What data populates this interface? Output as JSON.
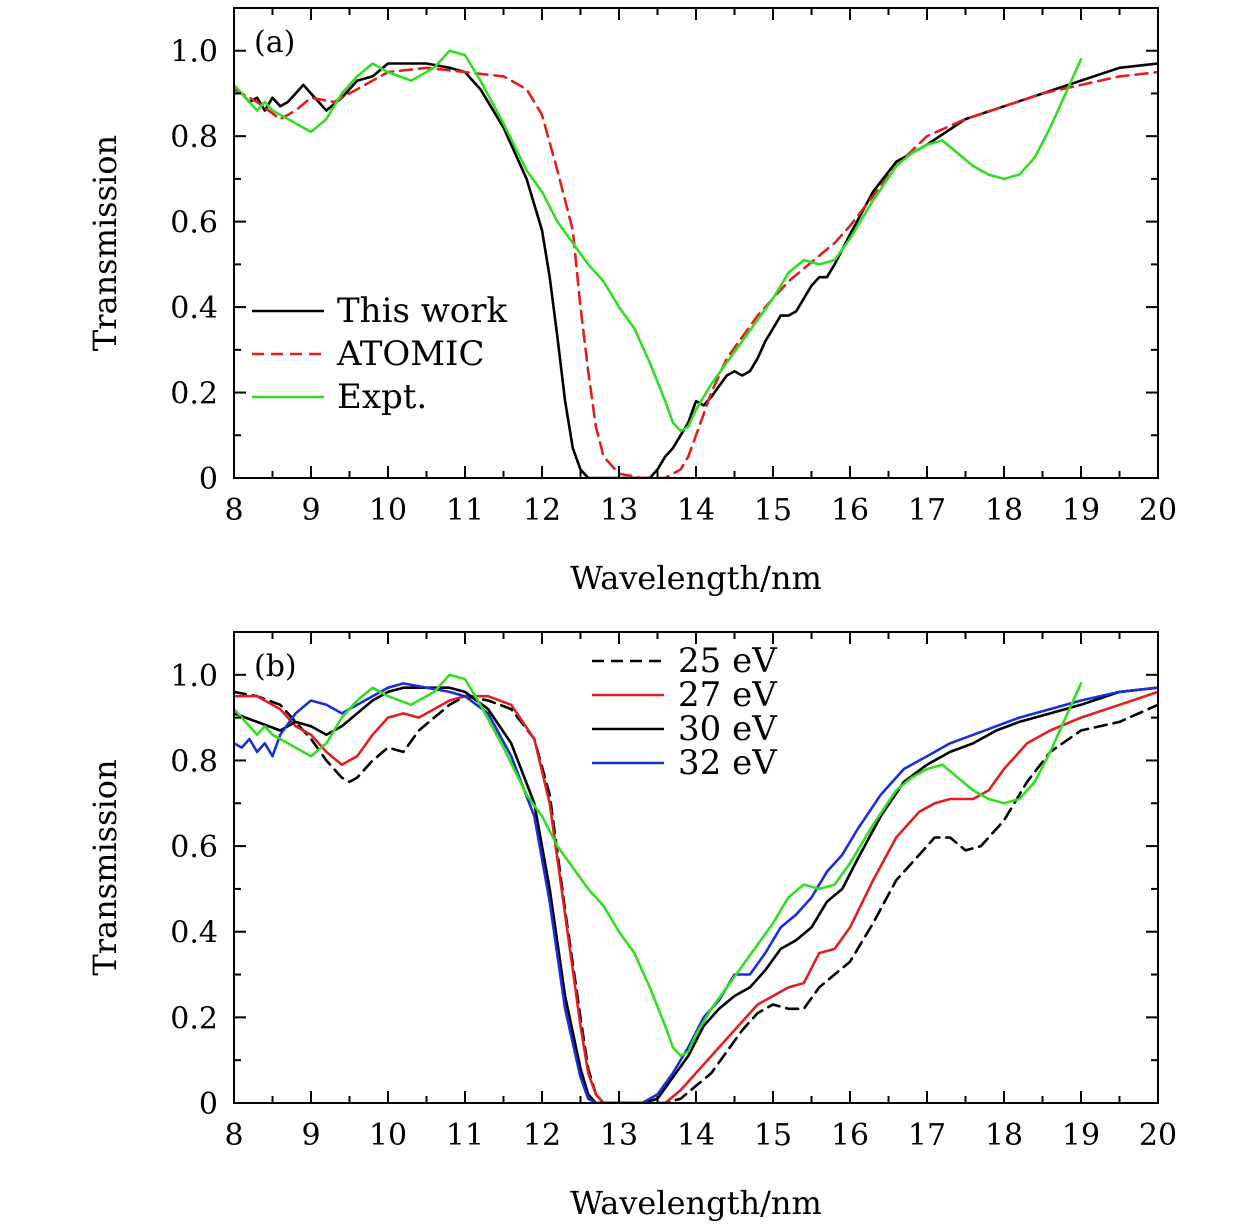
{
  "chart_data": [
    {
      "type": "line",
      "panel_label": "(a)",
      "xlabel": "Wavelength/nm",
      "ylabel": "Transmission",
      "xlim": [
        8,
        20
      ],
      "ylim": [
        0,
        1.1
      ],
      "xticks": [
        "8",
        "9",
        "10",
        "11",
        "12",
        "13",
        "14",
        "15",
        "16",
        "17",
        "18",
        "19",
        "20"
      ],
      "yticks": [
        "0",
        "0.2",
        "0.4",
        "0.6",
        "0.8",
        "1.0"
      ],
      "grid": false,
      "legend_position": "left-middle",
      "series": [
        {
          "name": "This work",
          "color": "#000000",
          "dash": "solid",
          "x": [
            8,
            8.1,
            8.2,
            8.3,
            8.4,
            8.5,
            8.6,
            8.7,
            8.8,
            8.9,
            9.0,
            9.2,
            9.4,
            9.6,
            9.8,
            10.0,
            10.2,
            10.5,
            10.8,
            11.0,
            11.2,
            11.5,
            11.8,
            12.0,
            12.1,
            12.2,
            12.3,
            12.4,
            12.5,
            12.6,
            12.7,
            13.0,
            13.3,
            13.4,
            13.5,
            13.6,
            13.7,
            13.8,
            13.9,
            14.0,
            14.1,
            14.2,
            14.4,
            14.5,
            14.6,
            14.7,
            14.8,
            14.9,
            15.0,
            15.1,
            15.2,
            15.3,
            15.4,
            15.5,
            15.6,
            15.7,
            15.8,
            16.0,
            16.3,
            16.6,
            17.0,
            17.5,
            18.0,
            18.5,
            19.0,
            19.5,
            20.0
          ],
          "y": [
            0.91,
            0.9,
            0.88,
            0.89,
            0.86,
            0.89,
            0.87,
            0.88,
            0.9,
            0.92,
            0.9,
            0.86,
            0.89,
            0.93,
            0.94,
            0.97,
            0.97,
            0.97,
            0.96,
            0.95,
            0.91,
            0.82,
            0.7,
            0.58,
            0.47,
            0.33,
            0.18,
            0.07,
            0.02,
            0.0,
            0.0,
            0.0,
            0.0,
            0.0,
            0.02,
            0.05,
            0.07,
            0.1,
            0.13,
            0.18,
            0.17,
            0.19,
            0.24,
            0.25,
            0.24,
            0.25,
            0.28,
            0.32,
            0.35,
            0.38,
            0.38,
            0.39,
            0.42,
            0.45,
            0.47,
            0.47,
            0.5,
            0.57,
            0.67,
            0.74,
            0.78,
            0.84,
            0.87,
            0.9,
            0.93,
            0.96,
            0.97
          ]
        },
        {
          "name": "ATOMIC",
          "color": "#e02020",
          "dash": "dashed",
          "x": [
            8,
            8.3,
            8.6,
            8.8,
            9.0,
            9.3,
            9.6,
            10.0,
            10.5,
            11.0,
            11.5,
            11.8,
            12.0,
            12.2,
            12.4,
            12.5,
            12.6,
            12.7,
            12.8,
            13.0,
            13.3,
            13.6,
            13.8,
            13.9,
            14.0,
            14.1,
            14.2,
            14.4,
            14.6,
            14.8,
            15.0,
            15.2,
            15.4,
            15.6,
            15.8,
            16.0,
            16.3,
            16.6,
            17.0,
            17.5,
            18.0,
            18.5,
            19.0,
            19.5,
            20.0
          ],
          "y": [
            0.91,
            0.88,
            0.84,
            0.86,
            0.89,
            0.88,
            0.91,
            0.95,
            0.96,
            0.95,
            0.94,
            0.91,
            0.85,
            0.72,
            0.58,
            0.4,
            0.25,
            0.12,
            0.05,
            0.01,
            0.0,
            0.0,
            0.02,
            0.05,
            0.1,
            0.15,
            0.2,
            0.28,
            0.33,
            0.38,
            0.42,
            0.46,
            0.49,
            0.52,
            0.55,
            0.59,
            0.66,
            0.73,
            0.8,
            0.84,
            0.87,
            0.9,
            0.92,
            0.94,
            0.95
          ]
        },
        {
          "name": "Expt.",
          "color": "#33dd22",
          "dash": "solid",
          "x": [
            8,
            8.2,
            8.3,
            8.4,
            8.5,
            8.6,
            8.8,
            9.0,
            9.2,
            9.4,
            9.6,
            9.8,
            10.0,
            10.3,
            10.6,
            10.8,
            11.0,
            11.2,
            11.5,
            11.8,
            12.0,
            12.2,
            12.4,
            12.6,
            12.8,
            13.0,
            13.2,
            13.4,
            13.6,
            13.7,
            13.8,
            13.9,
            14.0,
            14.2,
            14.4,
            14.6,
            14.8,
            15.0,
            15.2,
            15.4,
            15.6,
            15.8,
            16.0,
            16.3,
            16.6,
            16.8,
            17.0,
            17.2,
            17.4,
            17.6,
            17.8,
            18.0,
            18.2,
            18.4,
            18.6,
            18.8,
            19.0
          ],
          "y": [
            0.92,
            0.88,
            0.86,
            0.88,
            0.86,
            0.85,
            0.83,
            0.81,
            0.84,
            0.9,
            0.94,
            0.97,
            0.95,
            0.93,
            0.96,
            1.0,
            0.99,
            0.93,
            0.83,
            0.72,
            0.67,
            0.6,
            0.55,
            0.5,
            0.46,
            0.4,
            0.35,
            0.27,
            0.18,
            0.13,
            0.11,
            0.12,
            0.16,
            0.22,
            0.27,
            0.32,
            0.37,
            0.42,
            0.48,
            0.51,
            0.5,
            0.51,
            0.56,
            0.65,
            0.73,
            0.76,
            0.78,
            0.79,
            0.76,
            0.73,
            0.71,
            0.7,
            0.71,
            0.75,
            0.82,
            0.9,
            0.98
          ]
        }
      ]
    },
    {
      "type": "line",
      "panel_label": "(b)",
      "xlabel": "Wavelength/nm",
      "ylabel": "Transmission",
      "xlim": [
        8,
        20
      ],
      "ylim": [
        0,
        1.1
      ],
      "xticks": [
        "8",
        "9",
        "10",
        "11",
        "12",
        "13",
        "14",
        "15",
        "16",
        "17",
        "18",
        "19",
        "20"
      ],
      "yticks": [
        "0",
        "0.2",
        "0.4",
        "0.6",
        "0.8",
        "1.0"
      ],
      "grid": false,
      "legend_position": "top-middle",
      "series": [
        {
          "name": "25 eV",
          "color": "#000000",
          "dash": "dashed",
          "x": [
            8,
            8.3,
            8.6,
            8.8,
            9.0,
            9.2,
            9.4,
            9.5,
            9.6,
            9.8,
            10.0,
            10.2,
            10.4,
            10.6,
            10.8,
            11.0,
            11.3,
            11.6,
            11.9,
            12.1,
            12.3,
            12.5,
            12.6,
            12.7,
            12.8,
            13.0,
            13.3,
            13.6,
            13.8,
            14.0,
            14.2,
            14.4,
            14.6,
            14.8,
            15.0,
            15.2,
            15.4,
            15.6,
            15.8,
            16.0,
            16.3,
            16.6,
            16.9,
            17.1,
            17.3,
            17.5,
            17.7,
            18.0,
            18.3,
            18.6,
            19.0,
            19.5,
            20.0
          ],
          "y": [
            0.96,
            0.95,
            0.93,
            0.89,
            0.85,
            0.8,
            0.76,
            0.75,
            0.76,
            0.8,
            0.83,
            0.82,
            0.87,
            0.9,
            0.93,
            0.95,
            0.94,
            0.92,
            0.85,
            0.72,
            0.45,
            0.2,
            0.08,
            0.02,
            0.0,
            0.0,
            0.0,
            0.0,
            0.01,
            0.04,
            0.07,
            0.12,
            0.17,
            0.21,
            0.23,
            0.22,
            0.22,
            0.27,
            0.3,
            0.33,
            0.42,
            0.52,
            0.58,
            0.62,
            0.62,
            0.59,
            0.6,
            0.66,
            0.75,
            0.82,
            0.87,
            0.89,
            0.93
          ]
        },
        {
          "name": "27 eV",
          "color": "#e02020",
          "dash": "solid",
          "x": [
            8,
            8.3,
            8.6,
            8.8,
            9.0,
            9.2,
            9.4,
            9.6,
            9.8,
            10.0,
            10.2,
            10.4,
            10.6,
            10.8,
            11.0,
            11.3,
            11.6,
            11.9,
            12.1,
            12.3,
            12.5,
            12.6,
            12.7,
            12.8,
            13.0,
            13.3,
            13.6,
            13.8,
            14.0,
            14.2,
            14.4,
            14.6,
            14.8,
            15.0,
            15.2,
            15.4,
            15.6,
            15.8,
            16.0,
            16.3,
            16.6,
            16.9,
            17.1,
            17.3,
            17.6,
            17.8,
            18.0,
            18.3,
            18.6,
            19.0,
            19.5,
            20.0
          ],
          "y": [
            0.95,
            0.95,
            0.92,
            0.88,
            0.86,
            0.82,
            0.79,
            0.81,
            0.86,
            0.9,
            0.91,
            0.9,
            0.92,
            0.94,
            0.95,
            0.95,
            0.93,
            0.85,
            0.7,
            0.44,
            0.18,
            0.07,
            0.02,
            0.0,
            0.0,
            0.0,
            0.0,
            0.03,
            0.07,
            0.11,
            0.15,
            0.19,
            0.23,
            0.25,
            0.27,
            0.28,
            0.35,
            0.36,
            0.41,
            0.52,
            0.62,
            0.68,
            0.7,
            0.71,
            0.71,
            0.73,
            0.78,
            0.84,
            0.87,
            0.9,
            0.93,
            0.96
          ]
        },
        {
          "name": "30 eV",
          "color": "#000000",
          "dash": "solid",
          "x": [
            8,
            8.3,
            8.6,
            8.8,
            9.0,
            9.2,
            9.4,
            9.6,
            9.8,
            10.0,
            10.2,
            10.5,
            10.8,
            11.0,
            11.3,
            11.6,
            11.9,
            12.1,
            12.3,
            12.5,
            12.6,
            12.7,
            12.8,
            13.0,
            13.3,
            13.5,
            13.7,
            13.9,
            14.1,
            14.3,
            14.5,
            14.7,
            14.9,
            15.1,
            15.3,
            15.5,
            15.7,
            15.9,
            16.1,
            16.4,
            16.7,
            17.0,
            17.3,
            17.6,
            17.9,
            18.2,
            18.6,
            19.0,
            19.5,
            20.0
          ],
          "y": [
            0.91,
            0.89,
            0.87,
            0.89,
            0.88,
            0.86,
            0.88,
            0.91,
            0.94,
            0.96,
            0.97,
            0.97,
            0.97,
            0.96,
            0.92,
            0.84,
            0.7,
            0.5,
            0.25,
            0.08,
            0.02,
            0.0,
            0.0,
            0.0,
            0.0,
            0.01,
            0.06,
            0.11,
            0.18,
            0.22,
            0.25,
            0.27,
            0.31,
            0.36,
            0.38,
            0.41,
            0.47,
            0.5,
            0.57,
            0.67,
            0.75,
            0.79,
            0.82,
            0.84,
            0.87,
            0.89,
            0.91,
            0.93,
            0.96,
            0.97
          ]
        },
        {
          "name": "32 eV",
          "color": "#1a2fd6",
          "dash": "solid",
          "x": [
            8,
            8.1,
            8.2,
            8.3,
            8.4,
            8.5,
            8.6,
            8.8,
            9.0,
            9.2,
            9.4,
            9.6,
            9.8,
            10.0,
            10.2,
            10.5,
            10.8,
            11.0,
            11.3,
            11.6,
            11.9,
            12.1,
            12.3,
            12.5,
            12.6,
            12.7,
            12.8,
            13.0,
            13.3,
            13.5,
            13.7,
            13.9,
            14.1,
            14.3,
            14.5,
            14.7,
            14.9,
            15.1,
            15.3,
            15.5,
            15.7,
            15.9,
            16.1,
            16.4,
            16.7,
            17.0,
            17.3,
            17.6,
            17.9,
            18.2,
            18.6,
            19.0,
            19.5,
            20.0
          ],
          "y": [
            0.84,
            0.83,
            0.85,
            0.82,
            0.84,
            0.81,
            0.86,
            0.91,
            0.94,
            0.93,
            0.91,
            0.93,
            0.95,
            0.97,
            0.98,
            0.97,
            0.96,
            0.95,
            0.91,
            0.81,
            0.67,
            0.47,
            0.22,
            0.06,
            0.01,
            0.0,
            0.0,
            0.0,
            0.0,
            0.02,
            0.07,
            0.13,
            0.2,
            0.24,
            0.3,
            0.3,
            0.35,
            0.41,
            0.44,
            0.48,
            0.54,
            0.58,
            0.64,
            0.72,
            0.78,
            0.81,
            0.84,
            0.86,
            0.88,
            0.9,
            0.92,
            0.94,
            0.96,
            0.97
          ]
        },
        {
          "name": "",
          "color": "#33dd22",
          "dash": "solid",
          "x": [
            8,
            8.2,
            8.3,
            8.4,
            8.5,
            8.6,
            8.8,
            9.0,
            9.2,
            9.4,
            9.6,
            9.8,
            10.0,
            10.3,
            10.6,
            10.8,
            11.0,
            11.2,
            11.5,
            11.8,
            12.0,
            12.2,
            12.4,
            12.6,
            12.8,
            13.0,
            13.2,
            13.4,
            13.6,
            13.7,
            13.8,
            13.9,
            14.0,
            14.2,
            14.4,
            14.6,
            14.8,
            15.0,
            15.2,
            15.4,
            15.6,
            15.8,
            16.0,
            16.3,
            16.6,
            16.8,
            17.0,
            17.2,
            17.4,
            17.6,
            17.8,
            18.0,
            18.2,
            18.4,
            18.6,
            18.8,
            19.0
          ],
          "y": [
            0.92,
            0.88,
            0.86,
            0.88,
            0.86,
            0.85,
            0.83,
            0.81,
            0.84,
            0.9,
            0.94,
            0.97,
            0.95,
            0.93,
            0.96,
            1.0,
            0.99,
            0.93,
            0.83,
            0.72,
            0.67,
            0.6,
            0.55,
            0.5,
            0.46,
            0.4,
            0.35,
            0.27,
            0.18,
            0.13,
            0.11,
            0.12,
            0.16,
            0.22,
            0.27,
            0.32,
            0.37,
            0.42,
            0.48,
            0.51,
            0.5,
            0.51,
            0.56,
            0.65,
            0.73,
            0.76,
            0.78,
            0.79,
            0.76,
            0.73,
            0.71,
            0.7,
            0.71,
            0.75,
            0.82,
            0.9,
            0.98
          ]
        }
      ]
    }
  ]
}
